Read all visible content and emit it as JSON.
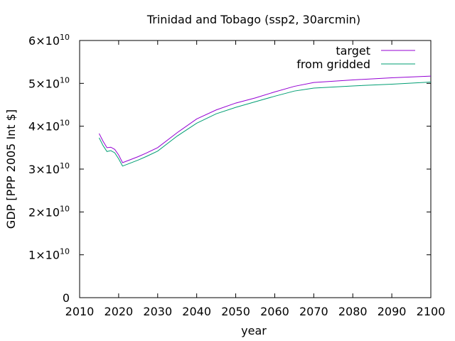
{
  "chart_data": {
    "type": "line",
    "title": "Trinidad and Tobago (ssp2, 30arcmin)",
    "xlabel": "year",
    "ylabel": "GDP [PPP 2005 Int $]",
    "xlim": [
      2010,
      2100
    ],
    "ylim": [
      0,
      60000000000
    ],
    "x_ticks": [
      "2010",
      "2020",
      "2030",
      "2040",
      "2050",
      "2060",
      "2070",
      "2080",
      "2090",
      "2100"
    ],
    "y_ticks": [
      {
        "mantissa": "0",
        "exp": ""
      },
      {
        "mantissa": "1×10",
        "exp": "10"
      },
      {
        "mantissa": "2×10",
        "exp": "10"
      },
      {
        "mantissa": "3×10",
        "exp": "10"
      },
      {
        "mantissa": "4×10",
        "exp": "10"
      },
      {
        "mantissa": "5×10",
        "exp": "10"
      },
      {
        "mantissa": "6×10",
        "exp": "10"
      }
    ],
    "legend_position": "top-right",
    "series": [
      {
        "name": "target",
        "color": "#9400d3",
        "points": [
          [
            2015,
            38300000000.0
          ],
          [
            2016,
            36500000000.0
          ],
          [
            2017,
            35000000000.0
          ],
          [
            2018,
            35100000000.0
          ],
          [
            2019,
            34600000000.0
          ],
          [
            2020,
            33300000000.0
          ],
          [
            2021,
            31500000000.0
          ],
          [
            2023,
            32200000000.0
          ],
          [
            2025,
            32900000000.0
          ],
          [
            2027,
            33700000000.0
          ],
          [
            2030,
            35000000000.0
          ],
          [
            2035,
            38500000000.0
          ],
          [
            2040,
            41700000000.0
          ],
          [
            2045,
            43800000000.0
          ],
          [
            2050,
            45400000000.0
          ],
          [
            2055,
            46600000000.0
          ],
          [
            2060,
            48000000000.0
          ],
          [
            2065,
            49300000000.0
          ],
          [
            2070,
            50200000000.0
          ],
          [
            2080,
            50800000000.0
          ],
          [
            2090,
            51300000000.0
          ],
          [
            2100,
            51700000000.0
          ]
        ]
      },
      {
        "name": "from gridded",
        "color": "#009e73",
        "points": [
          [
            2015,
            37300000000.0
          ],
          [
            2016,
            35500000000.0
          ],
          [
            2017,
            34100000000.0
          ],
          [
            2018,
            34300000000.0
          ],
          [
            2019,
            33800000000.0
          ],
          [
            2020,
            32400000000.0
          ],
          [
            2021,
            30700000000.0
          ],
          [
            2023,
            31400000000.0
          ],
          [
            2025,
            32100000000.0
          ],
          [
            2027,
            32900000000.0
          ],
          [
            2030,
            34200000000.0
          ],
          [
            2035,
            37700000000.0
          ],
          [
            2040,
            40700000000.0
          ],
          [
            2045,
            42900000000.0
          ],
          [
            2050,
            44400000000.0
          ],
          [
            2055,
            45700000000.0
          ],
          [
            2060,
            47000000000.0
          ],
          [
            2065,
            48200000000.0
          ],
          [
            2070,
            48900000000.0
          ],
          [
            2080,
            49400000000.0
          ],
          [
            2090,
            49800000000.0
          ],
          [
            2100,
            50300000000.0
          ]
        ]
      }
    ]
  }
}
